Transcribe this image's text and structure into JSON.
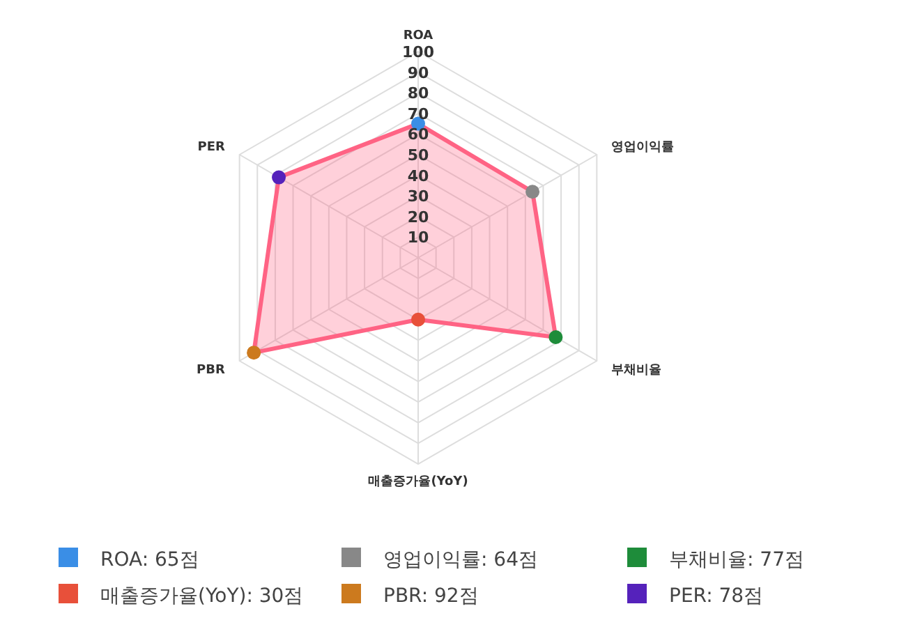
{
  "chart_data": {
    "type": "radar",
    "categories": [
      "ROA",
      "영업이익률",
      "부채비율",
      "매출증가율(YoY)",
      "PBR",
      "PER"
    ],
    "series": [
      {
        "color": "#ff6384",
        "values": [
          65,
          64,
          77,
          30,
          92,
          78
        ],
        "colors": [
          "#3a8ee6",
          "#888888",
          "#1e8c3a",
          "#e8503a",
          "#cc7a1e",
          "#5522bb"
        ]
      }
    ],
    "ylim": [
      0,
      100
    ],
    "yticks": [
      10,
      20,
      30,
      40,
      50,
      60,
      70,
      80,
      90,
      100
    ],
    "grid": true,
    "marker": "circle",
    "annotations": [
      "ROA: 65점",
      "영업이익률: 64점",
      "부채비율: 77점",
      "매출증가율(YoY): 30점",
      "PBR: 92점",
      "PER: 78점"
    ]
  }
}
